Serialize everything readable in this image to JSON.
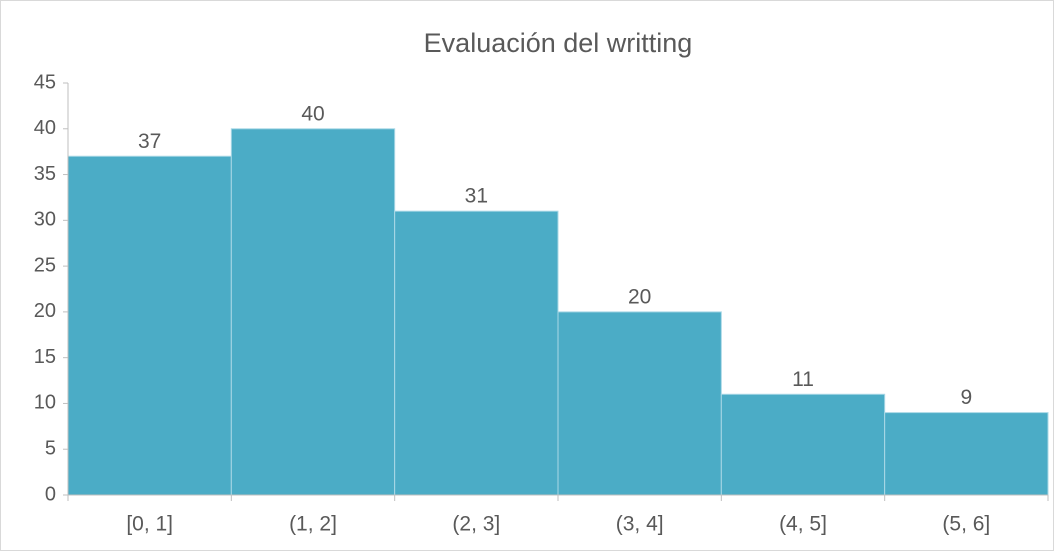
{
  "chart_data": {
    "type": "bar",
    "title": "Evaluación del writting",
    "categories": [
      "[0, 1]",
      "(1, 2]",
      "(2, 3]",
      "(3, 4]",
      "(4, 5]",
      "(5, 6]"
    ],
    "values": [
      37,
      40,
      31,
      20,
      11,
      9
    ],
    "color": "#4bacc6",
    "ylim": [
      0,
      45
    ],
    "yticks": [
      0,
      5,
      10,
      15,
      20,
      25,
      30,
      35,
      40,
      45
    ],
    "grid": false
  }
}
